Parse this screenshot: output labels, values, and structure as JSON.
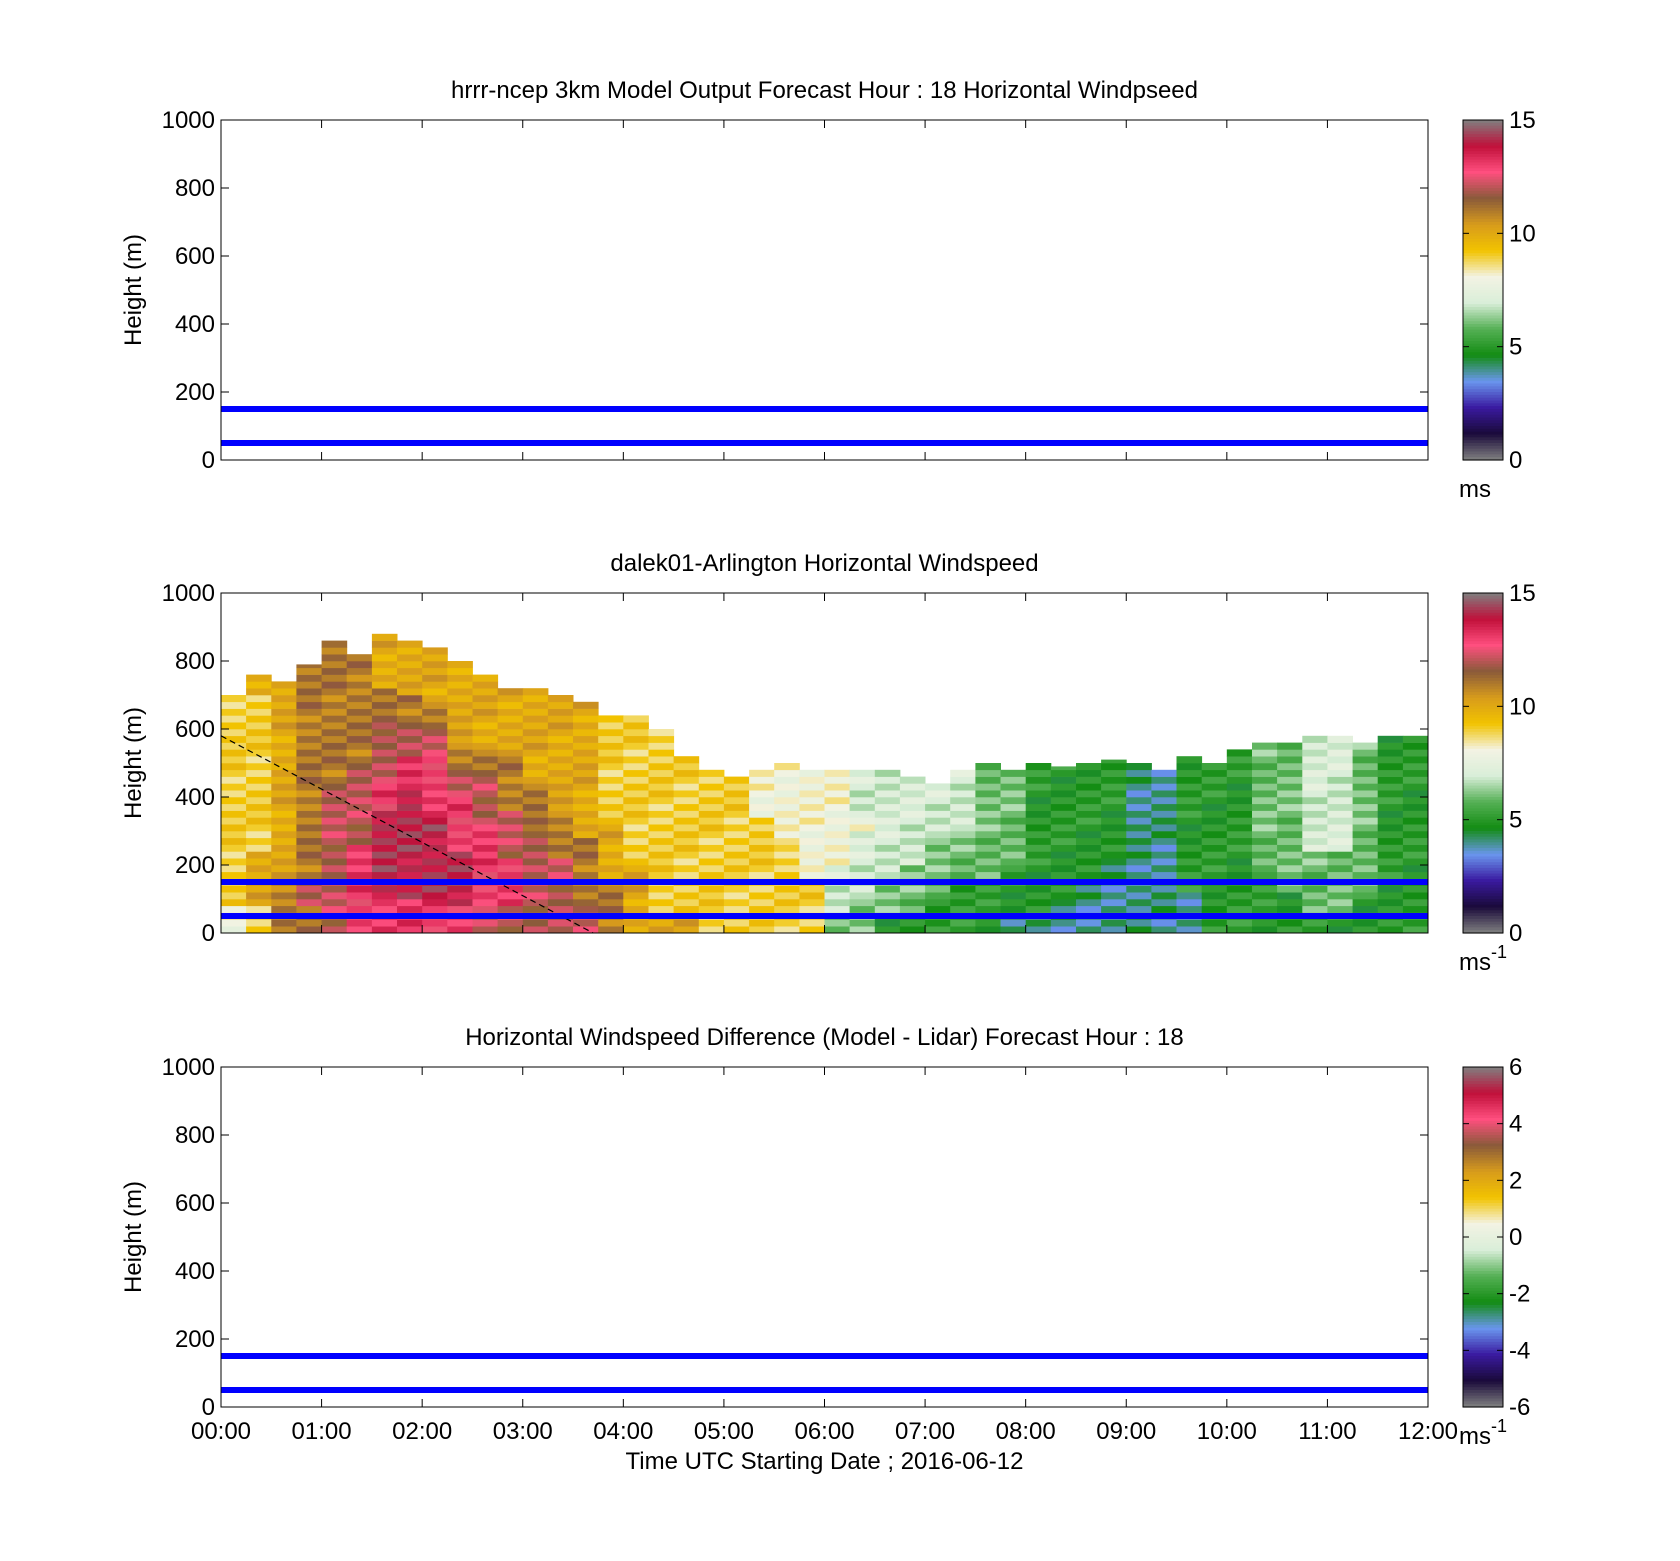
{
  "chart_data": [
    {
      "type": "heatmap",
      "title": "hrrr-ncep 3km Model Output   Forecast Hour : 18 Horizontal Windpseed",
      "xlabel": "",
      "ylabel": "Height (m)",
      "xlim_hours": [
        0,
        12
      ],
      "ylim": [
        0,
        1000
      ],
      "yticks": [
        0,
        200,
        400,
        600,
        800,
        1000
      ],
      "xtick_labels": [],
      "colorbar": {
        "min": 0,
        "max": 15,
        "ticks": [
          0,
          5,
          10,
          15
        ],
        "unit": "ms",
        "unit_sup": ""
      },
      "hlines": [
        {
          "y": 150,
          "color": "#0000ff"
        },
        {
          "y": 50,
          "color": "#0000ff"
        }
      ],
      "data": "no data shown"
    },
    {
      "type": "heatmap",
      "title": "dalek01-Arlington  Horizontal Windspeed",
      "xlabel": "",
      "ylabel": "Height (m)",
      "xlim_hours": [
        0,
        12
      ],
      "ylim": [
        0,
        1000
      ],
      "yticks": [
        0,
        200,
        400,
        600,
        800,
        1000
      ],
      "xtick_labels": [],
      "colorbar": {
        "min": 0,
        "max": 15,
        "ticks": [
          0,
          5,
          10,
          15
        ],
        "unit": "ms",
        "unit_sup": "-1"
      },
      "hlines": [
        {
          "y": 150,
          "color": "#0000ff"
        },
        {
          "y": 50,
          "color": "#0000ff"
        }
      ],
      "dashed_line": {
        "from": [
          0,
          580
        ],
        "to": [
          3.7,
          0
        ],
        "color": "#000000"
      },
      "columns_hour_step": 0.25,
      "column_tops_m": [
        700,
        760,
        740,
        790,
        860,
        820,
        880,
        860,
        840,
        800,
        760,
        720,
        720,
        700,
        680,
        640,
        640,
        600,
        520,
        480,
        460,
        480,
        500,
        480,
        480,
        480,
        480,
        460,
        440,
        480,
        500,
        480,
        500,
        490,
        500,
        510,
        500,
        480,
        520,
        500,
        540,
        560,
        560,
        580,
        580,
        560,
        580,
        580
      ],
      "column_speeds_ms": [
        [
          8,
          9,
          9,
          9,
          9,
          9,
          9,
          9,
          9,
          9
        ],
        [
          9,
          10,
          10,
          9,
          9,
          9,
          9,
          9,
          9,
          10
        ],
        [
          11,
          11,
          10,
          10,
          10,
          10,
          10,
          10,
          10,
          10
        ],
        [
          11,
          12,
          11,
          11,
          11,
          11,
          11,
          11,
          11,
          11
        ],
        [
          12,
          12,
          12,
          12,
          12,
          11,
          11,
          11,
          11,
          11
        ],
        [
          13,
          13,
          13,
          12,
          12,
          12,
          11,
          11,
          11,
          11
        ],
        [
          13,
          14,
          14,
          14,
          13,
          12,
          12,
          11,
          10,
          10
        ],
        [
          13,
          14,
          14,
          14,
          14,
          13,
          12,
          11,
          10,
          10
        ],
        [
          13,
          14,
          14,
          14,
          13,
          13,
          12,
          11,
          10,
          10
        ],
        [
          13,
          14,
          14,
          13,
          13,
          12,
          11,
          10,
          10,
          10
        ],
        [
          12,
          13,
          13,
          13,
          12,
          12,
          11,
          10,
          10,
          10
        ],
        [
          12,
          13,
          13,
          12,
          12,
          11,
          11,
          10,
          10,
          10
        ],
        [
          12,
          12,
          12,
          12,
          11,
          11,
          10,
          10,
          10,
          10
        ],
        [
          12,
          12,
          12,
          11,
          11,
          10,
          10,
          10,
          10,
          10
        ],
        [
          12,
          11,
          11,
          11,
          10,
          10,
          10,
          10,
          10,
          10
        ],
        [
          11,
          11,
          10,
          10,
          10,
          9,
          9,
          9,
          9,
          9
        ],
        [
          10,
          10,
          10,
          9,
          9,
          9,
          9,
          9,
          9,
          9
        ],
        [
          10,
          9,
          9,
          9,
          9,
          9,
          9,
          9,
          9,
          9
        ],
        [
          10,
          9,
          9,
          9,
          9,
          9,
          9,
          9,
          9,
          9
        ],
        [
          9,
          9,
          9,
          9,
          9,
          9,
          9,
          9,
          9,
          9
        ],
        [
          9,
          9,
          9,
          9,
          9,
          9,
          9,
          9,
          9,
          9
        ],
        [
          9,
          9,
          9,
          9,
          9,
          9,
          9,
          8,
          8,
          8
        ],
        [
          9,
          9,
          9,
          9,
          9,
          8,
          8,
          8,
          8,
          8
        ],
        [
          9,
          9,
          9,
          8,
          8,
          8,
          8,
          8,
          8,
          8
        ],
        [
          6,
          7,
          7,
          7,
          8,
          8,
          8,
          8,
          8,
          8
        ],
        [
          6,
          6,
          7,
          7,
          7,
          7,
          8,
          7,
          7,
          7
        ],
        [
          5,
          6,
          6,
          7,
          7,
          7,
          7,
          7,
          7,
          7
        ],
        [
          5,
          6,
          6,
          6,
          7,
          7,
          7,
          7,
          7,
          7
        ],
        [
          5,
          5,
          6,
          6,
          6,
          6,
          7,
          7,
          7,
          7
        ],
        [
          5,
          5,
          5,
          6,
          6,
          6,
          7,
          7,
          7,
          7
        ],
        [
          5,
          5,
          5,
          6,
          6,
          6,
          6,
          6,
          6,
          6
        ],
        [
          4,
          5,
          5,
          5,
          6,
          6,
          6,
          6,
          6,
          6
        ],
        [
          4,
          5,
          5,
          5,
          5,
          5,
          5,
          5,
          5,
          5
        ],
        [
          4,
          4,
          5,
          5,
          5,
          5,
          5,
          5,
          5,
          5
        ],
        [
          4,
          4,
          4,
          5,
          5,
          5,
          5,
          5,
          5,
          5
        ],
        [
          4,
          4,
          4,
          4,
          5,
          5,
          5,
          5,
          5,
          5
        ],
        [
          4,
          4,
          4,
          4,
          4,
          4,
          4,
          4,
          4,
          4
        ],
        [
          4,
          4,
          4,
          4,
          4,
          4,
          4,
          4,
          4,
          4
        ],
        [
          4,
          4,
          5,
          5,
          5,
          5,
          5,
          5,
          5,
          5
        ],
        [
          5,
          5,
          5,
          5,
          5,
          5,
          5,
          5,
          5,
          5
        ],
        [
          5,
          5,
          5,
          5,
          5,
          5,
          5,
          5,
          5,
          5
        ],
        [
          5,
          5,
          5,
          6,
          6,
          6,
          6,
          6,
          6,
          6
        ],
        [
          5,
          5,
          6,
          6,
          6,
          6,
          6,
          6,
          6,
          6
        ],
        [
          5,
          6,
          6,
          6,
          7,
          7,
          7,
          7,
          7,
          7
        ],
        [
          5,
          6,
          6,
          6,
          7,
          7,
          7,
          7,
          7,
          7
        ],
        [
          5,
          5,
          6,
          6,
          6,
          6,
          6,
          6,
          6,
          6
        ],
        [
          5,
          5,
          5,
          5,
          5,
          5,
          5,
          5,
          5,
          5
        ],
        [
          5,
          5,
          5,
          5,
          5,
          5,
          5,
          5,
          5,
          5
        ]
      ]
    },
    {
      "type": "heatmap",
      "title": "Horizontal Windspeed Difference (Model - Lidar) Forecast Hour : 18",
      "xlabel": "Time UTC  Starting Date ; 2016-06-12",
      "ylabel": "Height (m)",
      "xlim_hours": [
        0,
        12
      ],
      "ylim": [
        0,
        1000
      ],
      "yticks": [
        0,
        200,
        400,
        600,
        800,
        1000
      ],
      "xtick_labels": [
        "00:00",
        "01:00",
        "02:00",
        "03:00",
        "04:00",
        "05:00",
        "06:00",
        "07:00",
        "08:00",
        "09:00",
        "10:00",
        "11:00",
        "12:00"
      ],
      "colorbar": {
        "min": -6,
        "max": 6,
        "ticks": [
          -6,
          -4,
          -2,
          0,
          2,
          4,
          6
        ],
        "unit": "ms",
        "unit_sup": "-1"
      },
      "hlines": [
        {
          "y": 150,
          "color": "#0000ff"
        },
        {
          "y": 50,
          "color": "#0000ff"
        }
      ],
      "data": "no data shown"
    }
  ],
  "colormap_stops": [
    "#808080",
    "#1a0a3a",
    "#3a1aa0",
    "#6a96ee",
    "#138c13",
    "#55b055",
    "#d9eed9",
    "#f3f3e3",
    "#f2c300",
    "#d79b1c",
    "#8a5a3a",
    "#ff4f7f",
    "#c0103a",
    "#808080"
  ]
}
